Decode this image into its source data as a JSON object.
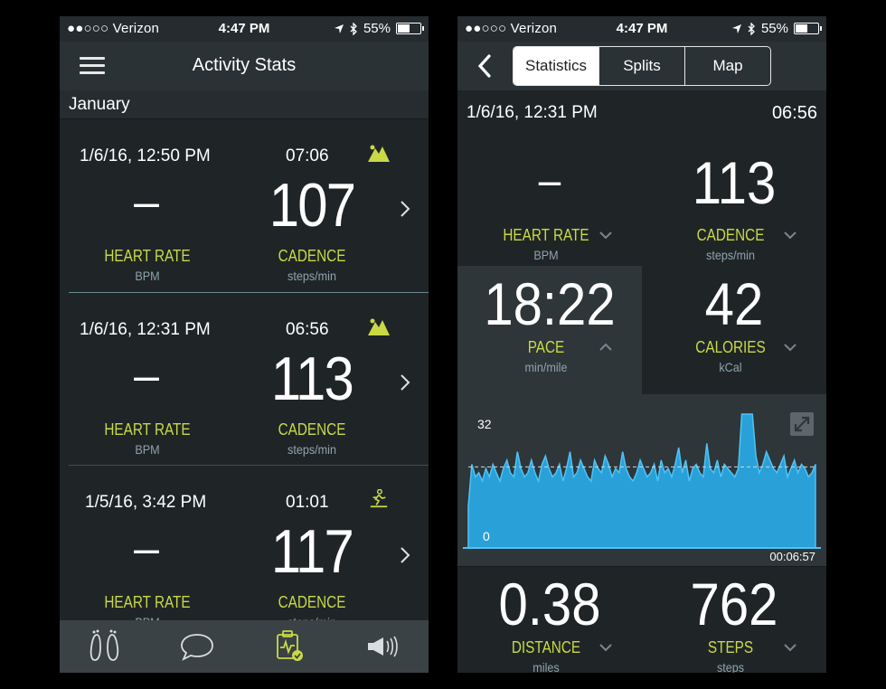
{
  "status": {
    "carrier": "●●○○○ Verizon",
    "time": "4:47 PM",
    "battery": "55%",
    "battery_level": 0.55
  },
  "list_screen": {
    "title": "Activity Stats",
    "section": "January",
    "workouts": [
      {
        "date": "1/6/16, 12:50 PM",
        "duration": "07:06",
        "type_icon": "trail-run-icon",
        "heart_rate": "–",
        "cadence": "107",
        "hr_label": "HEART RATE",
        "hr_unit": "BPM",
        "cad_label": "CADENCE",
        "cad_unit": "steps/min"
      },
      {
        "date": "1/6/16, 12:31 PM",
        "duration": "06:56",
        "type_icon": "trail-run-icon",
        "heart_rate": "–",
        "cadence": "113",
        "hr_label": "HEART RATE",
        "hr_unit": "BPM",
        "cad_label": "CADENCE",
        "cad_unit": "steps/min"
      },
      {
        "date": "1/5/16, 3:42 PM",
        "duration": "01:01",
        "type_icon": "treadmill-run-icon",
        "heart_rate": "–",
        "cadence": "117",
        "hr_label": "HEART RATE",
        "hr_unit": "BPM",
        "cad_label": "CADENCE",
        "cad_unit": "steps/min"
      }
    ],
    "tabs": [
      {
        "icon": "footprints-icon"
      },
      {
        "icon": "chat-bubble-icon"
      },
      {
        "icon": "activity-stats-icon",
        "active": true
      },
      {
        "icon": "megaphone-icon"
      }
    ]
  },
  "detail_screen": {
    "segments": [
      "Statistics",
      "Splits",
      "Map"
    ],
    "selected_segment": "Statistics",
    "date": "1/6/16, 12:31 PM",
    "duration": "06:56",
    "metrics": [
      {
        "value": "–",
        "label": "HEART RATE",
        "unit": "BPM",
        "chevron": "down"
      },
      {
        "value": "113",
        "label": "CADENCE",
        "unit": "steps/min",
        "chevron": "down"
      },
      {
        "value": "18:22",
        "label": "PACE",
        "unit": "min/mile",
        "chevron": "up",
        "selected": true
      },
      {
        "value": "42",
        "label": "CALORIES",
        "unit": "kCal",
        "chevron": "down"
      },
      {
        "value": "0.38",
        "label": "DISTANCE",
        "unit": "miles",
        "chevron": "down"
      },
      {
        "value": "762",
        "label": "STEPS",
        "unit": "steps",
        "chevron": "down"
      }
    ],
    "chart": {
      "y_max_label": "32",
      "y_min_label": "0",
      "x_end_label": "00:06:57"
    }
  },
  "colors": {
    "accent": "#c9d946",
    "unit": "#8fa3ad",
    "chart_fill": "#2aa0d8",
    "chart_line": "#4fc3f7"
  },
  "chart_data": {
    "type": "area",
    "title": "",
    "ylim": [
      0,
      32
    ],
    "x_range": [
      "0:00:00",
      "00:06:57"
    ],
    "average_line": true,
    "values": [
      10,
      20,
      17,
      18,
      16,
      19,
      17,
      20,
      18,
      16,
      19,
      21,
      18,
      17,
      23,
      19,
      17,
      18,
      21,
      18,
      16,
      20,
      22,
      19,
      17,
      18,
      20,
      16,
      19,
      23,
      17,
      18,
      21,
      19,
      17,
      16,
      21,
      19,
      18,
      22,
      20,
      17,
      19,
      18,
      23,
      19,
      17,
      16,
      18,
      21,
      19,
      17,
      18,
      20,
      16,
      21,
      18,
      19,
      17,
      20,
      24,
      18,
      21,
      16,
      19,
      20,
      18,
      17,
      25,
      19,
      18,
      21,
      17,
      20,
      19,
      18,
      17,
      19,
      32,
      32,
      32,
      32,
      22,
      18,
      20,
      23,
      21,
      19,
      18,
      20,
      22,
      17,
      19,
      21,
      18,
      20,
      19,
      17,
      18,
      20
    ]
  }
}
